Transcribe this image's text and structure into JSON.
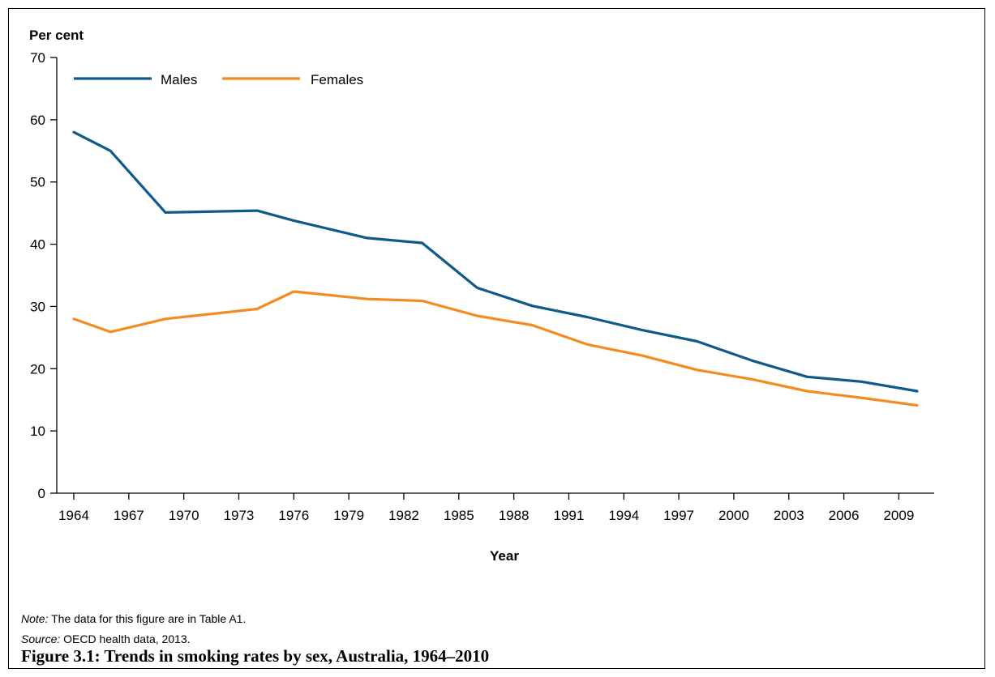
{
  "chart_data": {
    "type": "line",
    "ylabel": "Per cent",
    "xlabel": "Year",
    "ylim": [
      0,
      70
    ],
    "yticks": [
      0,
      10,
      20,
      30,
      40,
      50,
      60,
      70
    ],
    "xlim": [
      1964,
      2010
    ],
    "xticks": [
      1964,
      1967,
      1970,
      1973,
      1976,
      1979,
      1982,
      1985,
      1988,
      1991,
      1994,
      1997,
      2000,
      2003,
      2006,
      2009
    ],
    "legend_position": "top-left",
    "series": [
      {
        "name": "Males",
        "color": "#0e5a8a",
        "points": [
          [
            1964,
            58.0
          ],
          [
            1966,
            55.0
          ],
          [
            1969,
            45.1
          ],
          [
            1974,
            45.4
          ],
          [
            1976,
            43.8
          ],
          [
            1980,
            41.0
          ],
          [
            1983,
            40.2
          ],
          [
            1986,
            33.0
          ],
          [
            1989,
            30.1
          ],
          [
            1992,
            28.3
          ],
          [
            1995,
            26.2
          ],
          [
            1998,
            24.4
          ],
          [
            2001,
            21.3
          ],
          [
            2004,
            18.7
          ],
          [
            2007,
            17.9
          ],
          [
            2010,
            16.4
          ]
        ]
      },
      {
        "name": "Females",
        "color": "#f28b20",
        "points": [
          [
            1964,
            28.0
          ],
          [
            1966,
            25.9
          ],
          [
            1969,
            28.0
          ],
          [
            1974,
            29.6
          ],
          [
            1976,
            32.4
          ],
          [
            1980,
            31.2
          ],
          [
            1983,
            30.9
          ],
          [
            1986,
            28.5
          ],
          [
            1989,
            27.0
          ],
          [
            1992,
            23.9
          ],
          [
            1995,
            22.1
          ],
          [
            1998,
            19.8
          ],
          [
            2001,
            18.3
          ],
          [
            2004,
            16.4
          ],
          [
            2007,
            15.3
          ],
          [
            2010,
            14.1
          ]
        ]
      }
    ]
  },
  "note": {
    "label": "Note:",
    "text": "The data for this figure are in Table A1."
  },
  "source": {
    "label": "Source:",
    "text": "OECD health data, 2013."
  },
  "caption": "Figure 3.1: Trends in smoking rates by sex, Australia, 1964–2010"
}
